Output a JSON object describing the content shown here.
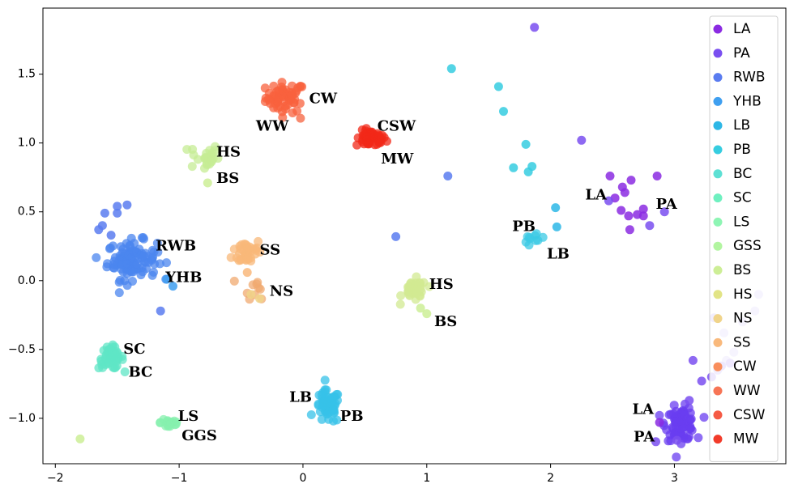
{
  "chart_data": {
    "type": "scatter",
    "xlim": [
      -2.1,
      3.9
    ],
    "ylim": [
      -1.33,
      1.98
    ],
    "x_ticks": [
      -2,
      -1,
      0,
      1,
      2,
      3
    ],
    "y_ticks": [
      -1.0,
      -0.5,
      0.0,
      0.5,
      1.0,
      1.5
    ],
    "x_tick_labels": [
      "−2",
      "−1",
      "0",
      "1",
      "2",
      "3"
    ],
    "y_tick_labels": [
      "−1.0",
      "−0.5",
      "0.0",
      "0.5",
      "1.0",
      "1.5"
    ],
    "grid": false,
    "legend_position": "top-right",
    "legend": [
      {
        "name": "LA",
        "color": "#8b2be2"
      },
      {
        "name": "PA",
        "color": "#7a4ff0"
      },
      {
        "name": "RWB",
        "color": "#5a7cf0"
      },
      {
        "name": "YHB",
        "color": "#3f9ff0"
      },
      {
        "name": "LB",
        "color": "#2db7e6"
      },
      {
        "name": "PB",
        "color": "#36cde0"
      },
      {
        "name": "BC",
        "color": "#5de0d4"
      },
      {
        "name": "SC",
        "color": "#6ff0c0"
      },
      {
        "name": "LS",
        "color": "#8ef5b4"
      },
      {
        "name": "GSS",
        "color": "#b2f5a0"
      },
      {
        "name": "BS",
        "color": "#cdee96"
      },
      {
        "name": "HS",
        "color": "#e2e486"
      },
      {
        "name": "NS",
        "color": "#f0d48a"
      },
      {
        "name": "SS",
        "color": "#f9b97c"
      },
      {
        "name": "CW",
        "color": "#f98e5c"
      },
      {
        "name": "WW",
        "color": "#f77556"
      },
      {
        "name": "CSW",
        "color": "#f55a44"
      },
      {
        "name": "MW",
        "color": "#f23b2a"
      }
    ],
    "clusters": [
      {
        "name": "CW/WW",
        "color": "#f8623d",
        "cx": -0.14,
        "cy": 1.33,
        "sx": 0.08,
        "sy": 0.055,
        "n": 60
      },
      {
        "name": "CSW/MW",
        "color": "#f22818",
        "cx": 0.55,
        "cy": 1.03,
        "sx": 0.06,
        "sy": 0.03,
        "n": 50
      },
      {
        "name": "HS/BS",
        "color": "#c6ec94",
        "cx": -0.8,
        "cy": 0.9,
        "sx": 0.06,
        "sy": 0.05,
        "n": 25
      },
      {
        "name": "SS",
        "color": "#f8b87a",
        "cx": -0.45,
        "cy": 0.21,
        "sx": 0.06,
        "sy": 0.05,
        "n": 40
      },
      {
        "name": "NS",
        "color": "#f0aa70",
        "cx": -0.38,
        "cy": -0.05,
        "sx": 0.05,
        "sy": 0.04,
        "n": 10
      },
      {
        "name": "RWB/YHB",
        "color": "#4b86ef",
        "cx": -1.38,
        "cy": 0.15,
        "sx": 0.1,
        "sy": 0.07,
        "n": 110
      },
      {
        "name": "SC/BC",
        "color": "#5fe6c6",
        "cx": -1.55,
        "cy": -0.56,
        "sx": 0.05,
        "sy": 0.04,
        "n": 50
      },
      {
        "name": "LS/GGS",
        "color": "#86f0ae",
        "cx": -1.07,
        "cy": -1.03,
        "sx": 0.04,
        "sy": 0.025,
        "n": 20
      },
      {
        "name": "LB/PB",
        "color": "#37c2e8",
        "cx": 0.2,
        "cy": -0.92,
        "sx": 0.05,
        "sy": 0.06,
        "n": 55
      },
      {
        "name": "HS/BS right",
        "color": "#d2ea92",
        "cx": 0.9,
        "cy": -0.07,
        "sx": 0.05,
        "sy": 0.04,
        "n": 35
      },
      {
        "name": "PB/LB right",
        "color": "#3bc9e4",
        "cx": 1.88,
        "cy": 0.31,
        "sx": 0.05,
        "sy": 0.03,
        "n": 10
      },
      {
        "name": "LA/PA bottom",
        "color": "#6a3ef0",
        "cx": 3.05,
        "cy": -1.04,
        "sx": 0.06,
        "sy": 0.06,
        "n": 80
      }
    ],
    "points": [
      {
        "x": 1.87,
        "y": 1.84,
        "color": "#7a4ff0"
      },
      {
        "x": 1.2,
        "y": 1.54,
        "color": "#36cde0"
      },
      {
        "x": 1.58,
        "y": 1.41,
        "color": "#36cde0"
      },
      {
        "x": 1.62,
        "y": 1.23,
        "color": "#36cde0"
      },
      {
        "x": 1.8,
        "y": 0.99,
        "color": "#36cde0"
      },
      {
        "x": 1.7,
        "y": 0.82,
        "color": "#36cde0"
      },
      {
        "x": 1.85,
        "y": 0.83,
        "color": "#36cde0"
      },
      {
        "x": 1.82,
        "y": 0.79,
        "color": "#36cde0"
      },
      {
        "x": 2.25,
        "y": 1.02,
        "color": "#7a4ff0"
      },
      {
        "x": 1.17,
        "y": 0.76,
        "color": "#5a7cf0"
      },
      {
        "x": 2.04,
        "y": 0.53,
        "color": "#2db7e6"
      },
      {
        "x": 2.05,
        "y": 0.39,
        "color": "#2db7e6"
      },
      {
        "x": 0.75,
        "y": 0.32,
        "color": "#5a7cf0"
      },
      {
        "x": 2.48,
        "y": 0.76,
        "color": "#8b2be2"
      },
      {
        "x": 2.52,
        "y": 0.6,
        "color": "#8b2be2"
      },
      {
        "x": 2.58,
        "y": 0.68,
        "color": "#8b2be2"
      },
      {
        "x": 2.6,
        "y": 0.64,
        "color": "#8b2be2"
      },
      {
        "x": 2.65,
        "y": 0.73,
        "color": "#8b2be2"
      },
      {
        "x": 2.57,
        "y": 0.51,
        "color": "#8b2be2"
      },
      {
        "x": 2.63,
        "y": 0.47,
        "color": "#8b2be2"
      },
      {
        "x": 2.7,
        "y": 0.48,
        "color": "#8b2be2"
      },
      {
        "x": 2.75,
        "y": 0.52,
        "color": "#8b2be2"
      },
      {
        "x": 2.75,
        "y": 0.47,
        "color": "#8b2be2"
      },
      {
        "x": 2.64,
        "y": 0.37,
        "color": "#8b2be2"
      },
      {
        "x": 2.86,
        "y": 0.76,
        "color": "#8b2be2"
      },
      {
        "x": 2.8,
        "y": 0.4,
        "color": "#7a4ff0"
      },
      {
        "x": 2.92,
        "y": 0.5,
        "color": "#7a4ff0"
      },
      {
        "x": 2.47,
        "y": 0.58,
        "color": "#7a4ff0"
      },
      {
        "x": -1.6,
        "y": 0.49,
        "color": "#5a7cf0"
      },
      {
        "x": -1.5,
        "y": 0.54,
        "color": "#5a7cf0"
      },
      {
        "x": -1.42,
        "y": 0.55,
        "color": "#5a7cf0"
      },
      {
        "x": -1.62,
        "y": 0.4,
        "color": "#5a7cf0"
      },
      {
        "x": -1.65,
        "y": 0.37,
        "color": "#5a7cf0"
      },
      {
        "x": -1.55,
        "y": 0.33,
        "color": "#5a7cf0"
      },
      {
        "x": -1.5,
        "y": 0.49,
        "color": "#5a7cf0"
      },
      {
        "x": -1.15,
        "y": -0.22,
        "color": "#5a7cf0"
      },
      {
        "x": -1.1,
        "y": 0.01,
        "color": "#3f9ff0"
      },
      {
        "x": -1.05,
        "y": -0.04,
        "color": "#3f9ff0"
      },
      {
        "x": -1.8,
        "y": -1.15,
        "color": "#cdee96"
      },
      {
        "x": -0.77,
        "y": 0.71,
        "color": "#cdee96"
      },
      {
        "x": 0.95,
        "y": -0.2,
        "color": "#cdee96"
      },
      {
        "x": 1.0,
        "y": -0.24,
        "color": "#cdee96"
      },
      {
        "x": -0.42,
        "y": -0.1,
        "color": "#f0d48a"
      },
      {
        "x": -0.35,
        "y": -0.13,
        "color": "#f0d48a"
      },
      {
        "x": -0.45,
        "y": 0.06,
        "color": "#f9b97c"
      },
      {
        "x": -0.02,
        "y": 1.18,
        "color": "#f77556"
      },
      {
        "x": 3.68,
        "y": -0.1,
        "color": "#b8a8f5"
      },
      {
        "x": 3.65,
        "y": -0.22,
        "color": "#b8a8f5"
      },
      {
        "x": 3.55,
        "y": -0.3,
        "color": "#b8a8f5"
      },
      {
        "x": 3.4,
        "y": -0.38,
        "color": "#b8a8f5"
      },
      {
        "x": 3.48,
        "y": -0.52,
        "color": "#b8a8f5"
      },
      {
        "x": 3.42,
        "y": -0.58,
        "color": "#b8a8f5"
      },
      {
        "x": 3.35,
        "y": -0.65,
        "color": "#9a7cf2"
      },
      {
        "x": 3.32,
        "y": -0.27,
        "color": "#9a7cf2"
      },
      {
        "x": 3.15,
        "y": -0.58,
        "color": "#7a4ff0"
      },
      {
        "x": 3.22,
        "y": -0.73,
        "color": "#7a4ff0"
      },
      {
        "x": 3.3,
        "y": -0.7,
        "color": "#7a4ff0"
      },
      {
        "x": 3.38,
        "y": -0.62,
        "color": "#7a4ff0"
      },
      {
        "x": 3.45,
        "y": -0.6,
        "color": "#7a4ff0"
      },
      {
        "x": 2.85,
        "y": -1.17,
        "color": "#7a4ff0"
      },
      {
        "x": 3.02,
        "y": -1.16,
        "color": "#7a4ff0"
      },
      {
        "x": 2.88,
        "y": -1.03,
        "color": "#8b2be2"
      },
      {
        "x": 3.12,
        "y": -0.87,
        "color": "#7a4ff0"
      }
    ],
    "annotations": [
      {
        "text": "CW",
        "x": 0.05,
        "y": 1.32
      },
      {
        "text": "WW",
        "x": -0.38,
        "y": 1.12
      },
      {
        "text": "CSW",
        "x": 0.6,
        "y": 1.12
      },
      {
        "text": "MW",
        "x": 0.63,
        "y": 0.88
      },
      {
        "text": "HS",
        "x": -0.7,
        "y": 0.93
      },
      {
        "text": "BS",
        "x": -0.7,
        "y": 0.74
      },
      {
        "text": "SS",
        "x": -0.35,
        "y": 0.22
      },
      {
        "text": "NS",
        "x": -0.27,
        "y": -0.08
      },
      {
        "text": "RWB",
        "x": -1.19,
        "y": 0.25
      },
      {
        "text": "YHB",
        "x": -1.11,
        "y": 0.02
      },
      {
        "text": "SC",
        "x": -1.45,
        "y": -0.5
      },
      {
        "text": "BC",
        "x": -1.41,
        "y": -0.67
      },
      {
        "text": "LS",
        "x": -1.01,
        "y": -0.99
      },
      {
        "text": "GGS",
        "x": -0.98,
        "y": -1.13
      },
      {
        "text": "LB",
        "x": -0.11,
        "y": -0.85
      },
      {
        "text": "PB",
        "x": 0.3,
        "y": -0.99
      },
      {
        "text": "HS",
        "x": 1.02,
        "y": -0.03
      },
      {
        "text": "BS",
        "x": 1.06,
        "y": -0.3
      },
      {
        "text": "PB",
        "x": 1.69,
        "y": 0.39
      },
      {
        "text": "LB",
        "x": 1.97,
        "y": 0.19
      },
      {
        "text": "LA",
        "x": 2.28,
        "y": 0.62
      },
      {
        "text": "PA",
        "x": 2.85,
        "y": 0.55
      },
      {
        "text": "LA",
        "x": 2.66,
        "y": -0.94
      },
      {
        "text": "PA",
        "x": 2.67,
        "y": -1.14
      }
    ]
  }
}
